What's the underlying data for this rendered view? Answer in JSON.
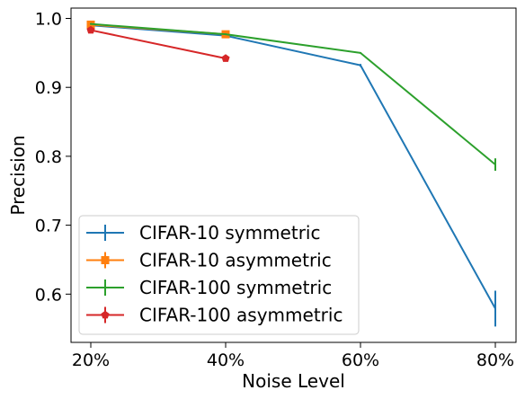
{
  "chart_data": {
    "type": "line",
    "title": "",
    "xlabel": "Noise Level",
    "ylabel": "Precision",
    "x_categories": [
      "20%",
      "40%",
      "60%",
      "80%"
    ],
    "ylim": [
      0.53,
      1.015
    ],
    "y_ticks": [
      "0.6",
      "0.7",
      "0.8",
      "0.9",
      "1.0"
    ],
    "y_tick_values": [
      0.6,
      0.7,
      0.8,
      0.9,
      1.0
    ],
    "grid": false,
    "legend_position": "lower-left",
    "series": [
      {
        "name": "CIFAR-10 symmetric",
        "color": "#1f77b4",
        "marker": "none",
        "x": [
          "20%",
          "40%",
          "60%",
          "80%"
        ],
        "values": [
          0.99,
          0.975,
          0.932,
          0.579
        ],
        "errors": [
          0.001,
          0.002,
          0.002,
          0.026
        ]
      },
      {
        "name": "CIFAR-10 asymmetric",
        "color": "#ff7f0e",
        "marker": "square",
        "x": [
          "20%",
          "40%"
        ],
        "values": [
          0.991,
          0.977
        ],
        "errors": [
          0.001,
          0.001
        ]
      },
      {
        "name": "CIFAR-100 symmetric",
        "color": "#2ca02c",
        "marker": "none",
        "x": [
          "20%",
          "40%",
          "60%",
          "80%"
        ],
        "values": [
          0.992,
          0.977,
          0.95,
          0.788
        ],
        "errors": [
          0.001,
          0.001,
          0.001,
          0.009
        ]
      },
      {
        "name": "CIFAR-100 asymmetric",
        "color": "#d62728",
        "marker": "pentagon",
        "x": [
          "20%",
          "40%"
        ],
        "values": [
          0.983,
          0.942
        ],
        "errors": [
          0.001,
          0.001
        ]
      }
    ]
  }
}
